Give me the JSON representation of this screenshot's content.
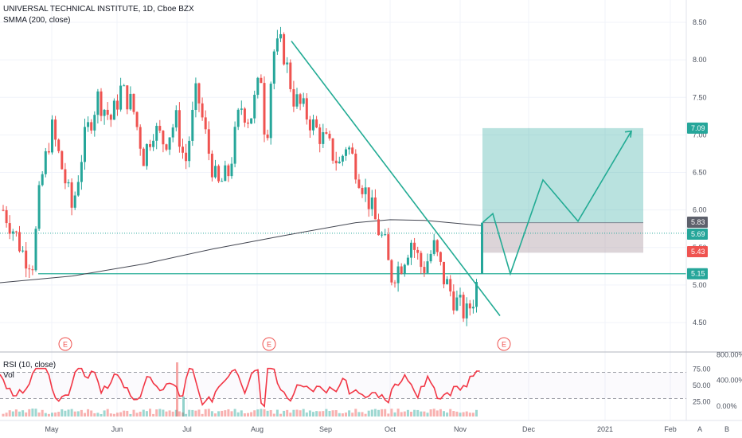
{
  "header": {
    "title": "UNIVERSAL TECHNICAL INSTITUTE, 1D, Cboe BZX",
    "indicator": "SMMA (200, close)"
  },
  "price_axis": {
    "ticks": [
      "8.50",
      "8.00",
      "7.50",
      "7.00",
      "6.50",
      "6.00",
      "5.50",
      "5.00",
      "4.50"
    ]
  },
  "price_tags": [
    {
      "text": "7.09",
      "value": 7.09,
      "color": "#26a69a"
    },
    {
      "text": "5.83",
      "value": 5.83,
      "color": "#5d606b"
    },
    {
      "text": "5.69",
      "value": 5.69,
      "color": "#26a69a"
    },
    {
      "text": "5.43",
      "value": 5.43,
      "color": "#ef5350"
    },
    {
      "text": "5.15",
      "value": 5.15,
      "color": "#26a69a"
    }
  ],
  "rsi_panel": {
    "title": "RSI (10, close)",
    "vol_label": "Vol",
    "left_ticks": [
      "75.00",
      "50.00",
      "25.00"
    ],
    "right_ticks": [
      "800.00%",
      "400.00%",
      "0.00%"
    ]
  },
  "time_axis": {
    "labels": [
      "May",
      "Jun",
      "Jul",
      "Aug",
      "Sep",
      "Oct",
      "Nov",
      "Dec",
      "2021",
      "Feb"
    ]
  },
  "earnings_markers": [
    "E",
    "E",
    "E"
  ],
  "corner_buttons": {
    "auto": "A",
    "log": "B"
  },
  "colors": {
    "up": "#26a69a",
    "down": "#ef5350",
    "smma": "#434651",
    "rsi": "#f23645",
    "trend": "#22ab94"
  },
  "chart_data": {
    "type": "candlestick",
    "title": "UNIVERSAL TECHNICAL INSTITUTE, 1D, Cboe BZX",
    "ylim": [
      4.2,
      8.7
    ],
    "x_range": [
      "Apr 2020",
      "Feb 2021"
    ],
    "grid": true,
    "close_path": [
      {
        "date": "2020-04-15",
        "close": 6.0
      },
      {
        "date": "2020-04-20",
        "close": 5.7
      },
      {
        "date": "2020-04-24",
        "close": 5.4
      },
      {
        "date": "2020-04-28",
        "close": 5.3
      },
      {
        "date": "2020-05-01",
        "close": 6.3
      },
      {
        "date": "2020-05-06",
        "close": 7.1
      },
      {
        "date": "2020-05-11",
        "close": 6.5
      },
      {
        "date": "2020-05-15",
        "close": 6.0
      },
      {
        "date": "2020-05-20",
        "close": 6.9
      },
      {
        "date": "2020-05-26",
        "close": 7.5
      },
      {
        "date": "2020-06-01",
        "close": 7.2
      },
      {
        "date": "2020-06-05",
        "close": 7.6
      },
      {
        "date": "2020-06-10",
        "close": 7.4
      },
      {
        "date": "2020-06-15",
        "close": 6.7
      },
      {
        "date": "2020-06-19",
        "close": 7.1
      },
      {
        "date": "2020-06-24",
        "close": 6.9
      },
      {
        "date": "2020-06-29",
        "close": 7.2
      },
      {
        "date": "2020-07-03",
        "close": 6.6
      },
      {
        "date": "2020-07-08",
        "close": 7.6
      },
      {
        "date": "2020-07-13",
        "close": 6.8
      },
      {
        "date": "2020-07-17",
        "close": 6.3
      },
      {
        "date": "2020-07-22",
        "close": 6.5
      },
      {
        "date": "2020-07-27",
        "close": 7.4
      },
      {
        "date": "2020-07-31",
        "close": 7.2
      },
      {
        "date": "2020-08-05",
        "close": 7.8
      },
      {
        "date": "2020-08-07",
        "close": 6.8
      },
      {
        "date": "2020-08-10",
        "close": 8.1
      },
      {
        "date": "2020-08-14",
        "close": 8.2
      },
      {
        "date": "2020-08-19",
        "close": 7.5
      },
      {
        "date": "2020-08-24",
        "close": 7.3
      },
      {
        "date": "2020-08-28",
        "close": 7.1
      },
      {
        "date": "2020-09-02",
        "close": 6.9
      },
      {
        "date": "2020-09-08",
        "close": 6.6
      },
      {
        "date": "2020-09-11",
        "close": 6.9
      },
      {
        "date": "2020-09-16",
        "close": 6.5
      },
      {
        "date": "2020-09-21",
        "close": 6.1
      },
      {
        "date": "2020-09-24",
        "close": 5.8
      },
      {
        "date": "2020-09-28",
        "close": 5.5
      },
      {
        "date": "2020-09-30",
        "close": 5.1
      },
      {
        "date": "2020-10-05",
        "close": 5.3
      },
      {
        "date": "2020-10-09",
        "close": 5.6
      },
      {
        "date": "2020-10-14",
        "close": 5.2
      },
      {
        "date": "2020-10-19",
        "close": 5.5
      },
      {
        "date": "2020-10-23",
        "close": 5.1
      },
      {
        "date": "2020-10-28",
        "close": 4.8
      },
      {
        "date": "2020-11-02",
        "close": 4.6
      },
      {
        "date": "2020-11-06",
        "close": 4.9
      },
      {
        "date": "2020-11-09",
        "close": 5.7
      }
    ],
    "smma_200": [
      {
        "date": "2020-04-15",
        "value": 5.03
      },
      {
        "date": "2020-05-15",
        "value": 5.12
      },
      {
        "date": "2020-06-15",
        "value": 5.28
      },
      {
        "date": "2020-07-15",
        "value": 5.48
      },
      {
        "date": "2020-08-15",
        "value": 5.66
      },
      {
        "date": "2020-09-15",
        "value": 5.83
      },
      {
        "date": "2020-09-30",
        "value": 5.87
      },
      {
        "date": "2020-10-15",
        "value": 5.86
      },
      {
        "date": "2020-11-09",
        "value": 5.79
      }
    ],
    "horizontal_lines": [
      5.15,
      5.69
    ],
    "trendline": [
      {
        "date": "2020-08-15",
        "value": 8.25
      },
      {
        "date": "2020-11-20",
        "value": 4.59
      }
    ],
    "projection_path": [
      5.83,
      5.95,
      5.15,
      6.4,
      5.85,
      7.05
    ],
    "position_box": {
      "entry": 5.83,
      "target": 7.09,
      "stop": 5.43
    },
    "rsi_10": {
      "range": [
        0,
        100
      ],
      "levels": [
        70,
        30
      ]
    }
  }
}
